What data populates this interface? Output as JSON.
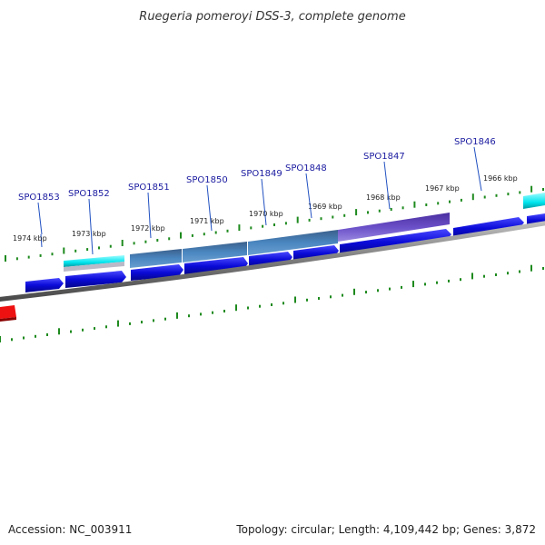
{
  "title": "Ruegeria pomeroyi DSS-3, complete genome",
  "footer": {
    "accession": "Accession: NC_003911",
    "summary": "Topology: circular; Length: 4,109,442 bp; Genes: 3,872"
  },
  "scale_labels": [
    "1974 kbp",
    "1973 kbp",
    "1972 kbp",
    "1971 kbp",
    "1970 kbp",
    "1969 kbp",
    "1968 kbp",
    "1967 kbp",
    "1966 kbp"
  ],
  "gene_labels": [
    "SPO1853",
    "SPO1852",
    "SPO1851",
    "SPO1850",
    "SPO1849",
    "SPO1848",
    "SPO1847",
    "SPO1846"
  ],
  "colors": {
    "cds": "#0a0ad8",
    "rrna": "#00e5ee",
    "blue_feature": "#3a78b0",
    "purple_feature": "#6a4fc8",
    "red_feature": "#ee1111",
    "ticks": "#1e8a1e",
    "backbone": "#808080"
  }
}
